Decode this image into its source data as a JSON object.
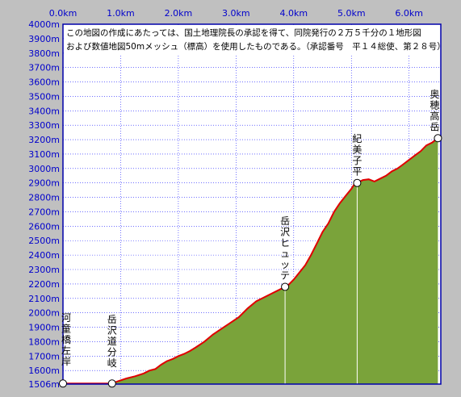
{
  "notice": {
    "line1": "この地図の作成にあたっては、国土地理院長の承認を得て、同院発行の２万５千分の１地形図",
    "line2": "および数値地図50mメッシュ（標高）を使用したものである。（承認番号　平１４総使、第２８号）"
  },
  "chart_data": {
    "type": "area",
    "xlim": [
      0,
      6.55
    ],
    "ylim": [
      1506,
      4000
    ],
    "x_tick_labels": [
      "0.0km",
      "1.0km",
      "2.0km",
      "3.0km",
      "4.0km",
      "5.0km",
      "6.0km"
    ],
    "x_ticks": [
      0,
      1,
      2,
      3,
      4,
      5,
      6
    ],
    "y_tick_labels": [
      "4000m",
      "3900m",
      "3800m",
      "3700m",
      "3600m",
      "3500m",
      "3400m",
      "3300m",
      "3200m",
      "3100m",
      "3000m",
      "2900m",
      "2800m",
      "2700m",
      "2600m",
      "2500m",
      "2400m",
      "2300m",
      "2200m",
      "2100m",
      "2000m",
      "1900m",
      "1800m",
      "1700m",
      "1600m",
      "1506m"
    ],
    "y_ticks": [
      4000,
      3900,
      3800,
      3700,
      3600,
      3500,
      3400,
      3300,
      3200,
      3100,
      3000,
      2900,
      2800,
      2700,
      2600,
      2500,
      2400,
      2300,
      2200,
      2100,
      2000,
      1900,
      1800,
      1700,
      1600,
      1506
    ],
    "grid": true,
    "colors": {
      "fill": "#7aa33a",
      "line": "#e00000",
      "grid": "#1a1aff",
      "frame": "#0000aa",
      "background": "#c0c0c0"
    },
    "profile": [
      [
        0.0,
        1510
      ],
      [
        0.85,
        1510
      ],
      [
        0.95,
        1525
      ],
      [
        1.1,
        1545
      ],
      [
        1.25,
        1560
      ],
      [
        1.4,
        1580
      ],
      [
        1.5,
        1600
      ],
      [
        1.6,
        1610
      ],
      [
        1.7,
        1640
      ],
      [
        1.8,
        1665
      ],
      [
        1.9,
        1680
      ],
      [
        2.0,
        1700
      ],
      [
        2.1,
        1715
      ],
      [
        2.2,
        1735
      ],
      [
        2.3,
        1760
      ],
      [
        2.45,
        1800
      ],
      [
        2.6,
        1850
      ],
      [
        2.75,
        1890
      ],
      [
        2.9,
        1930
      ],
      [
        3.05,
        1970
      ],
      [
        3.2,
        2030
      ],
      [
        3.35,
        2080
      ],
      [
        3.5,
        2110
      ],
      [
        3.65,
        2140
      ],
      [
        3.8,
        2170
      ],
      [
        3.9,
        2190
      ],
      [
        4.0,
        2230
      ],
      [
        4.1,
        2280
      ],
      [
        4.2,
        2330
      ],
      [
        4.3,
        2400
      ],
      [
        4.4,
        2480
      ],
      [
        4.5,
        2560
      ],
      [
        4.6,
        2620
      ],
      [
        4.7,
        2700
      ],
      [
        4.8,
        2760
      ],
      [
        4.9,
        2810
      ],
      [
        5.0,
        2860
      ],
      [
        5.05,
        2890
      ],
      [
        5.1,
        2900
      ],
      [
        5.2,
        2920
      ],
      [
        5.3,
        2925
      ],
      [
        5.4,
        2910
      ],
      [
        5.5,
        2930
      ],
      [
        5.6,
        2950
      ],
      [
        5.7,
        2980
      ],
      [
        5.8,
        3000
      ],
      [
        5.9,
        3030
      ],
      [
        6.0,
        3060
      ],
      [
        6.1,
        3090
      ],
      [
        6.2,
        3120
      ],
      [
        6.3,
        3160
      ],
      [
        6.4,
        3180
      ],
      [
        6.5,
        3210
      ]
    ],
    "waypoints": [
      {
        "name": "河童橋左岸",
        "x": 0.0,
        "y": 1510
      },
      {
        "name": "岳沢道分岐",
        "x": 0.85,
        "y": 1510
      },
      {
        "name": "岳沢ヒュッテ",
        "x": 3.85,
        "y": 2180
      },
      {
        "name": "紀美子平",
        "x": 5.1,
        "y": 2900
      },
      {
        "name": "奥穂高岳",
        "x": 6.5,
        "y": 3210
      }
    ]
  }
}
